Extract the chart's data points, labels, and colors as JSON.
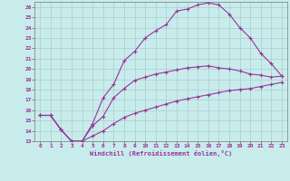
{
  "xlabel": "Windchill (Refroidissement éolien,°C)",
  "bg_color": "#c8ecec",
  "line_color": "#993399",
  "grid_color": "#aacccc",
  "xlim": [
    -0.5,
    23.5
  ],
  "ylim": [
    13,
    26.5
  ],
  "xticks": [
    0,
    1,
    2,
    3,
    4,
    5,
    6,
    7,
    8,
    9,
    10,
    11,
    12,
    13,
    14,
    15,
    16,
    17,
    18,
    19,
    20,
    21,
    22,
    23
  ],
  "yticks": [
    13,
    14,
    15,
    16,
    17,
    18,
    19,
    20,
    21,
    22,
    23,
    24,
    25,
    26
  ],
  "curve1_x": [
    0,
    1,
    2,
    3,
    4,
    5,
    6,
    7,
    8,
    9,
    10,
    11,
    12,
    13,
    14,
    15,
    16,
    17,
    18,
    19,
    20,
    21,
    22,
    23
  ],
  "curve1_y": [
    15.5,
    15.5,
    14.1,
    13.0,
    13.0,
    14.7,
    17.2,
    18.5,
    20.8,
    21.7,
    23.0,
    23.7,
    24.3,
    25.6,
    25.8,
    26.2,
    26.4,
    26.2,
    25.3,
    24.0,
    23.0,
    21.5,
    20.5,
    19.3
  ],
  "curve2_x": [
    0,
    1,
    2,
    3,
    4,
    5,
    6,
    7,
    8,
    9,
    10,
    11,
    12,
    13,
    14,
    15,
    16,
    17,
    18,
    19,
    20,
    21,
    22,
    23
  ],
  "curve2_y": [
    15.5,
    15.5,
    14.1,
    13.0,
    13.0,
    14.5,
    15.4,
    17.2,
    18.1,
    18.9,
    19.2,
    19.5,
    19.7,
    19.9,
    20.1,
    20.2,
    20.3,
    20.1,
    20.0,
    19.8,
    19.5,
    19.4,
    19.2,
    19.3
  ],
  "curve3_x": [
    0,
    1,
    2,
    3,
    4,
    5,
    6,
    7,
    8,
    9,
    10,
    11,
    12,
    13,
    14,
    15,
    16,
    17,
    18,
    19,
    20,
    21,
    22,
    23
  ],
  "curve3_y": [
    15.5,
    15.5,
    14.1,
    13.0,
    13.0,
    13.5,
    14.0,
    14.7,
    15.3,
    15.7,
    16.0,
    16.3,
    16.6,
    16.9,
    17.1,
    17.3,
    17.5,
    17.7,
    17.9,
    18.0,
    18.1,
    18.3,
    18.5,
    18.7
  ]
}
